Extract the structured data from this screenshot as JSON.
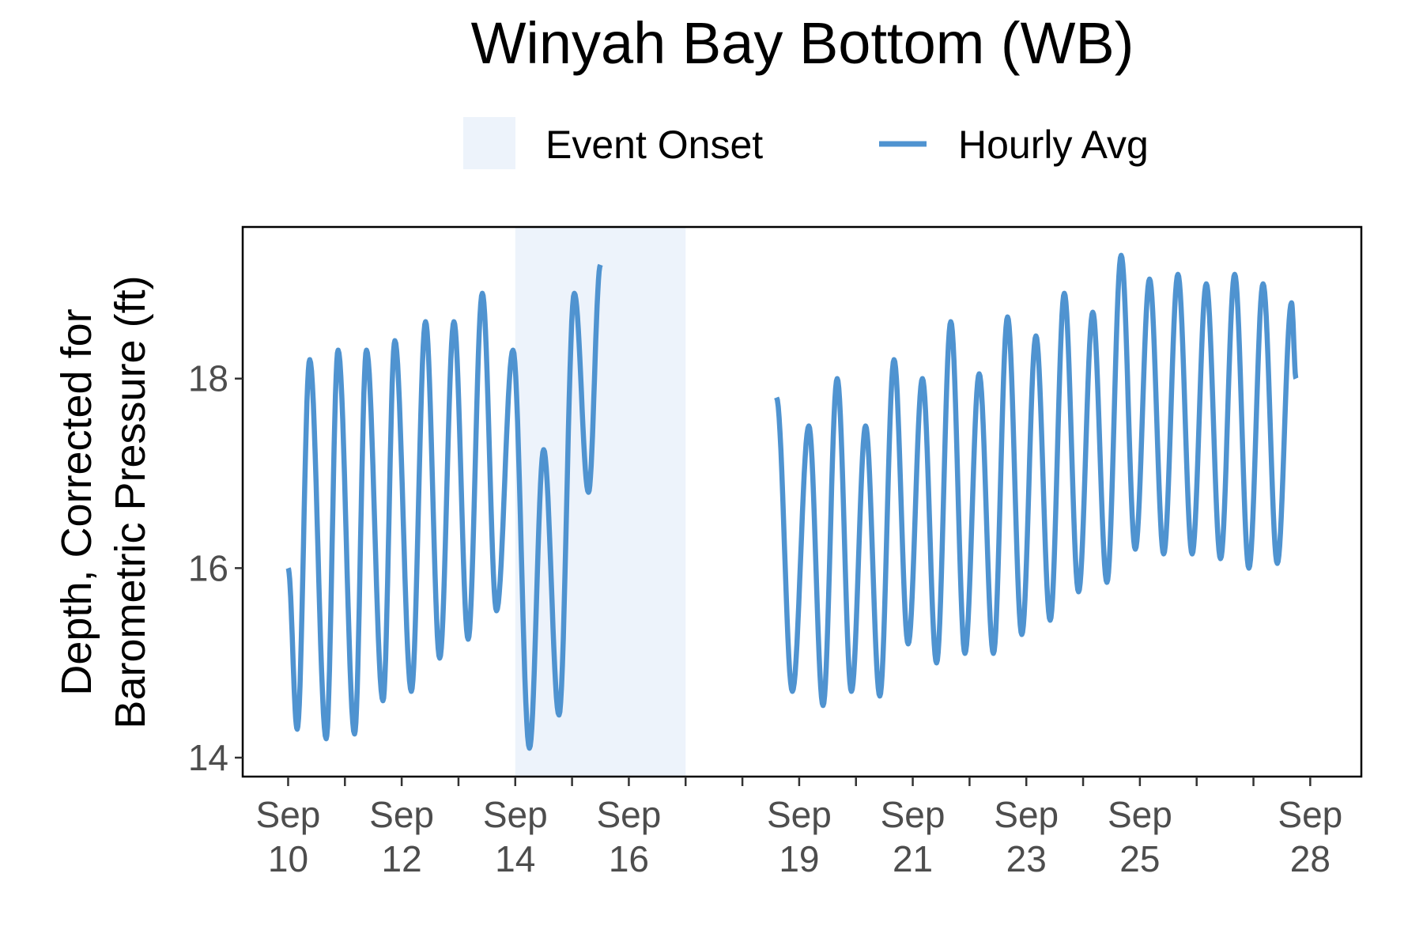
{
  "chart_data": {
    "type": "line",
    "title": "Winyah Bay Bottom (WB)",
    "ylabel_line1": "Depth, Corrected for",
    "ylabel_line2": "Barometric Pressure (ft)",
    "xlabel": "",
    "x_range_days": [
      9.2,
      28.9
    ],
    "ylim": [
      13.8,
      19.6
    ],
    "y_ticks": [
      14,
      16,
      18
    ],
    "x_ticks": [
      {
        "day": 10,
        "line1": "Sep",
        "line2": "10"
      },
      {
        "day": 12,
        "line1": "Sep",
        "line2": "12"
      },
      {
        "day": 14,
        "line1": "Sep",
        "line2": "14"
      },
      {
        "day": 16,
        "line1": "Sep",
        "line2": "16"
      },
      {
        "day": 19,
        "line1": "Sep",
        "line2": "19"
      },
      {
        "day": 21,
        "line1": "Sep",
        "line2": "21"
      },
      {
        "day": 23,
        "line1": "Sep",
        "line2": "23"
      },
      {
        "day": 25,
        "line1": "Sep",
        "line2": "25"
      },
      {
        "day": 28,
        "line1": "Sep",
        "line2": "28"
      }
    ],
    "minor_ticks": [
      11,
      13,
      15,
      17,
      18,
      20,
      22,
      24,
      26,
      27
    ],
    "grid": false,
    "legend": {
      "position": "top",
      "items": [
        {
          "type": "band",
          "label": "Event Onset",
          "color": "#edf3fb"
        },
        {
          "type": "line",
          "label": "Hourly Avg",
          "color": "#4f93d0"
        }
      ]
    },
    "shaded_region": {
      "label": "Event Onset",
      "start_day": 14.0,
      "end_day": 17.0,
      "color": "#edf3fb"
    },
    "series": [
      {
        "name": "Hourly Avg",
        "color": "#4f93d0",
        "segments": [
          {
            "extrema": [
              [
                10.0,
                16.0
              ],
              [
                10.16,
                14.3
              ],
              [
                10.38,
                18.2
              ],
              [
                10.67,
                14.2
              ],
              [
                10.88,
                18.3
              ],
              [
                11.17,
                14.25
              ],
              [
                11.38,
                18.3
              ],
              [
                11.67,
                14.6
              ],
              [
                11.88,
                18.4
              ],
              [
                12.17,
                14.7
              ],
              [
                12.42,
                18.6
              ],
              [
                12.67,
                15.05
              ],
              [
                12.92,
                18.6
              ],
              [
                13.17,
                15.25
              ],
              [
                13.42,
                18.9
              ],
              [
                13.67,
                15.55
              ],
              [
                13.96,
                18.3
              ],
              [
                14.25,
                14.1
              ],
              [
                14.5,
                17.25
              ],
              [
                14.77,
                14.45
              ],
              [
                15.04,
                18.9
              ],
              [
                15.29,
                16.8
              ],
              [
                15.5,
                19.2
              ]
            ]
          },
          {
            "extrema": [
              [
                18.6,
                17.8
              ],
              [
                18.88,
                14.7
              ],
              [
                19.17,
                17.5
              ],
              [
                19.42,
                14.55
              ],
              [
                19.67,
                18.0
              ],
              [
                19.92,
                14.7
              ],
              [
                20.17,
                17.5
              ],
              [
                20.42,
                14.65
              ],
              [
                20.67,
                18.2
              ],
              [
                20.92,
                15.2
              ],
              [
                21.17,
                18.0
              ],
              [
                21.42,
                15.0
              ],
              [
                21.67,
                18.6
              ],
              [
                21.92,
                15.1
              ],
              [
                22.17,
                18.05
              ],
              [
                22.42,
                15.1
              ],
              [
                22.67,
                18.65
              ],
              [
                22.92,
                15.3
              ],
              [
                23.17,
                18.45
              ],
              [
                23.42,
                15.45
              ],
              [
                23.67,
                18.9
              ],
              [
                23.92,
                15.75
              ],
              [
                24.17,
                18.7
              ],
              [
                24.42,
                15.85
              ],
              [
                24.67,
                19.3
              ],
              [
                24.92,
                16.2
              ],
              [
                25.17,
                19.05
              ],
              [
                25.42,
                16.15
              ],
              [
                25.67,
                19.1
              ],
              [
                25.92,
                16.15
              ],
              [
                26.17,
                19.0
              ],
              [
                26.42,
                16.1
              ],
              [
                26.67,
                19.1
              ],
              [
                26.92,
                16.0
              ],
              [
                27.17,
                19.0
              ],
              [
                27.42,
                16.05
              ],
              [
                27.67,
                18.8
              ],
              [
                27.75,
                18.0
              ]
            ]
          }
        ]
      }
    ]
  }
}
